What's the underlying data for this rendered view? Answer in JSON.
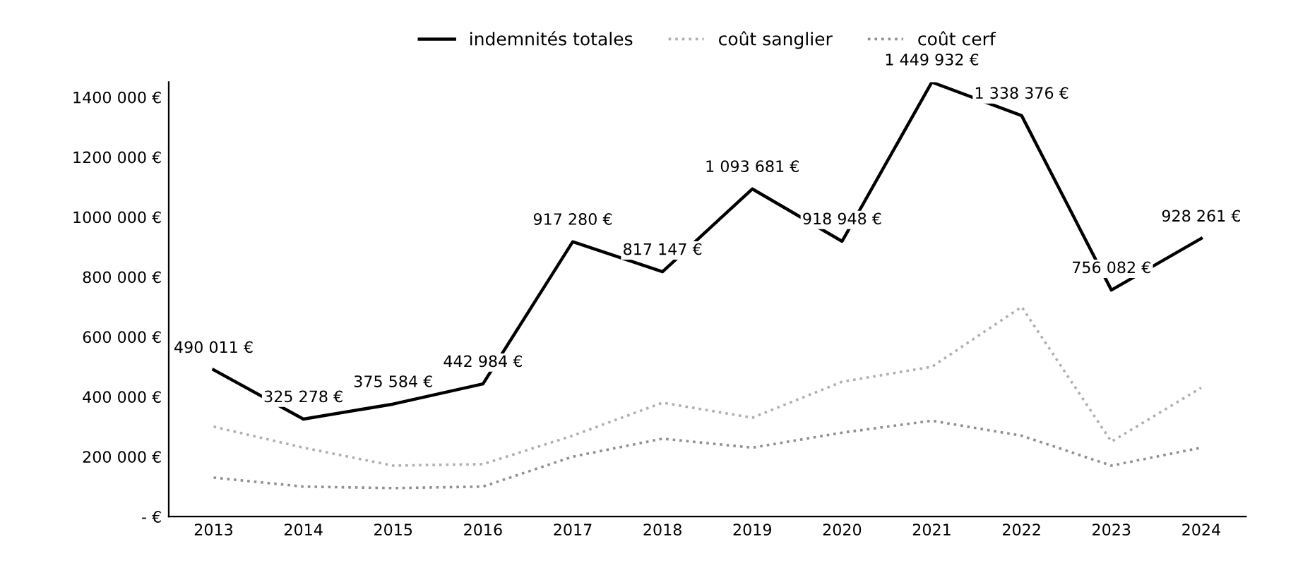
{
  "chart_data": {
    "type": "line",
    "categories": [
      "2013",
      "2014",
      "2015",
      "2016",
      "2017",
      "2018",
      "2019",
      "2020",
      "2021",
      "2022",
      "2023",
      "2024"
    ],
    "ylim": [
      0,
      1450000
    ],
    "yticks": [
      {
        "value": 0,
        "label": "- €"
      },
      {
        "value": 200000,
        "label": "200 000 €"
      },
      {
        "value": 400000,
        "label": "400 000 €"
      },
      {
        "value": 600000,
        "label": "600 000 €"
      },
      {
        "value": 800000,
        "label": "800 000 €"
      },
      {
        "value": 1000000,
        "label": "1000 000 €"
      },
      {
        "value": 1200000,
        "label": "1200 000 €"
      },
      {
        "value": 1400000,
        "label": "1400 000 €"
      }
    ],
    "grid": false,
    "legend": "top",
    "marker": "none",
    "series": [
      {
        "name": "indemnités totales",
        "color": "#000000",
        "line_style": "solid",
        "data_labels": true,
        "value_labels": [
          "490 011 €",
          "325 278 €",
          "375 584 €",
          "442 984 €",
          "917 280 €",
          "817 147 €",
          "1 093 681 €",
          "918 948 €",
          "1 449 932 €",
          "1 338 376 €",
          "756 082 €",
          "928 261 €"
        ],
        "values": [
          490011,
          325278,
          375584,
          442984,
          917280,
          817147,
          1093681,
          918948,
          1449932,
          1338376,
          756082,
          928261
        ]
      },
      {
        "name": "coût sanglier",
        "color": "#b0b0b0",
        "line_style": "dotted",
        "values": [
          300000,
          230000,
          170000,
          175000,
          270000,
          380000,
          330000,
          450000,
          500000,
          700000,
          250000,
          430000
        ]
      },
      {
        "name": "coût cerf",
        "color": "#909090",
        "line_style": "dotted",
        "values": [
          130000,
          100000,
          95000,
          100000,
          200000,
          260000,
          230000,
          280000,
          320000,
          270000,
          170000,
          230000
        ]
      }
    ]
  }
}
